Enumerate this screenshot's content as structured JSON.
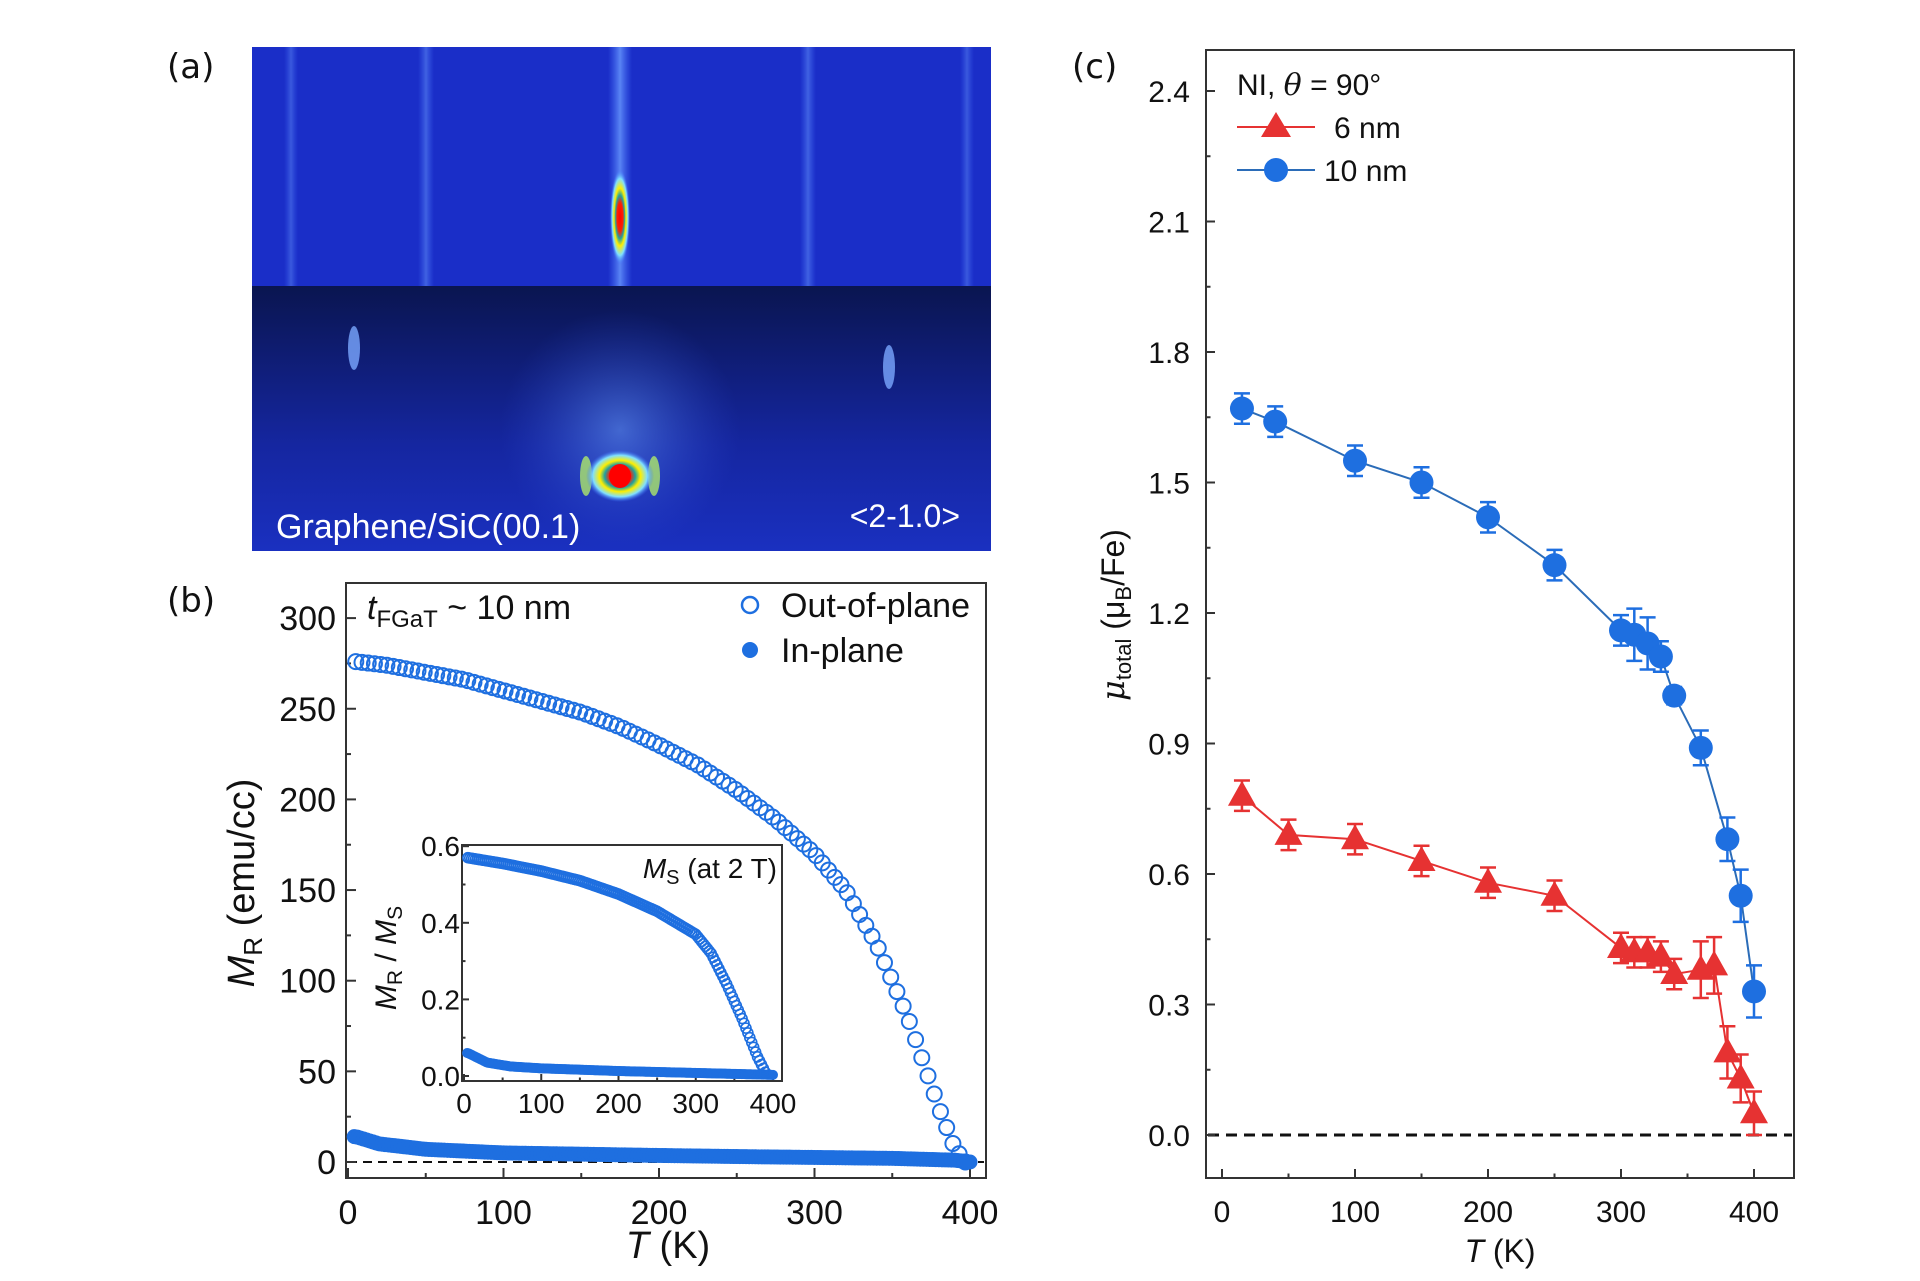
{
  "panels": {
    "a": "(a)",
    "b": "(b)",
    "c": "(c)"
  },
  "rheed": {
    "left_label": "Graphene/SiC(00.1)",
    "right_label": "<2-1.0>"
  },
  "colors": {
    "blue": "#1e6fe0",
    "blue_line": "#2b6cb8",
    "red": "#e63232"
  },
  "chart_data": [
    {
      "id": "b",
      "type": "scatter",
      "annotation_main": "t",
      "annotation_sub": "FGaT",
      "annotation_rest": " ~ 10 nm",
      "xlabel_italic": "T",
      "xlabel_rest": " (K)",
      "ylabel_italic": "M",
      "ylabel_sub": "R",
      "ylabel_rest": " (emu/cc)",
      "xlim": [
        0,
        400
      ],
      "ylim": [
        -15,
        320
      ],
      "xticks": [
        "0",
        "100",
        "200",
        "300",
        "400"
      ],
      "yticks": [
        "0",
        "50",
        "100",
        "150",
        "200",
        "250",
        "300"
      ],
      "series": [
        {
          "name": "Out-of-plane",
          "marker": "open-circle",
          "x": [
            5,
            25,
            50,
            75,
            100,
            125,
            150,
            175,
            200,
            225,
            250,
            275,
            300,
            320,
            340,
            350,
            360,
            370,
            380,
            390,
            397
          ],
          "y": [
            276,
            274,
            270,
            266,
            260,
            254,
            248,
            240,
            230,
            219,
            205,
            189,
            170,
            150,
            120,
            100,
            80,
            55,
            30,
            8,
            0
          ]
        },
        {
          "name": "In-plane",
          "marker": "filled-circle",
          "x": [
            5,
            20,
            50,
            100,
            150,
            200,
            250,
            300,
            350,
            390,
            400
          ],
          "y": [
            14,
            10,
            7,
            5,
            4.3,
            3.6,
            3,
            2.5,
            2,
            1,
            0
          ]
        }
      ],
      "inset": {
        "label_italic": "M",
        "label_sub": "S",
        "label_rest": " (at 2 T)",
        "ylabel_a": "M",
        "ylabel_a_sub": "R",
        "ylabel_sep": " / ",
        "ylabel_b": "M",
        "ylabel_b_sub": "S",
        "xlim": [
          0,
          400
        ],
        "ylim": [
          -0.01,
          0.6
        ],
        "xticks": [
          "0",
          "100",
          "200",
          "300",
          "400"
        ],
        "yticks": [
          "0.0",
          "0.2",
          "0.4",
          "0.6"
        ],
        "series": [
          {
            "name": "Out-of-plane",
            "x": [
              5,
              50,
              100,
              150,
              200,
              250,
              300,
              320,
              340,
              360,
              380,
              390
            ],
            "y": [
              0.57,
              0.555,
              0.535,
              0.51,
              0.475,
              0.43,
              0.37,
              0.32,
              0.24,
              0.15,
              0.05,
              0.01
            ]
          },
          {
            "name": "In-plane",
            "x": [
              5,
              30,
              60,
              100,
              200,
              300,
              400
            ],
            "y": [
              0.06,
              0.035,
              0.025,
              0.02,
              0.013,
              0.008,
              0.003
            ]
          }
        ]
      }
    },
    {
      "id": "c",
      "type": "line",
      "legend_title_a": "NI, ",
      "legend_title_theta": "θ",
      "legend_title_b": " = 90°",
      "xlabel_italic": "T",
      "xlabel_rest": " (K)",
      "ylabel_mu": "μ",
      "ylabel_sub": "total",
      "ylabel_rest": " (μ",
      "ylabel_B": "B",
      "ylabel_end": "/Fe)",
      "xlim": [
        0,
        400
      ],
      "ylim": [
        -0.1,
        2.5
      ],
      "xticks": [
        "0",
        "100",
        "200",
        "300",
        "400"
      ],
      "yticks": [
        "0.0",
        "0.3",
        "0.6",
        "0.9",
        "1.2",
        "1.5",
        "1.8",
        "2.1",
        "2.4"
      ],
      "series": [
        {
          "name": "6 nm",
          "marker": "triangle",
          "x": [
            15,
            50,
            100,
            150,
            200,
            250,
            300,
            310,
            320,
            330,
            340,
            360,
            370,
            380,
            390,
            400
          ],
          "y": [
            0.78,
            0.69,
            0.68,
            0.63,
            0.58,
            0.55,
            0.43,
            0.42,
            0.42,
            0.41,
            0.37,
            0.38,
            0.39,
            0.19,
            0.13,
            0.05
          ],
          "err": [
            0.035,
            0.035,
            0.035,
            0.035,
            0.035,
            0.035,
            0.035,
            0.035,
            0.035,
            0.035,
            0.035,
            0.065,
            0.065,
            0.06,
            0.055,
            0.05
          ]
        },
        {
          "name": "10 nm",
          "marker": "circle",
          "x": [
            15,
            40,
            100,
            150,
            200,
            250,
            300,
            310,
            320,
            330,
            340,
            360,
            380,
            390,
            400
          ],
          "y": [
            1.67,
            1.64,
            1.55,
            1.5,
            1.42,
            1.31,
            1.16,
            1.15,
            1.13,
            1.1,
            1.01,
            0.89,
            0.68,
            0.55,
            0.33
          ],
          "err": [
            0.035,
            0.035,
            0.035,
            0.035,
            0.035,
            0.035,
            0.035,
            0.06,
            0.06,
            0.035,
            0.02,
            0.04,
            0.05,
            0.06,
            0.06
          ]
        }
      ]
    }
  ]
}
